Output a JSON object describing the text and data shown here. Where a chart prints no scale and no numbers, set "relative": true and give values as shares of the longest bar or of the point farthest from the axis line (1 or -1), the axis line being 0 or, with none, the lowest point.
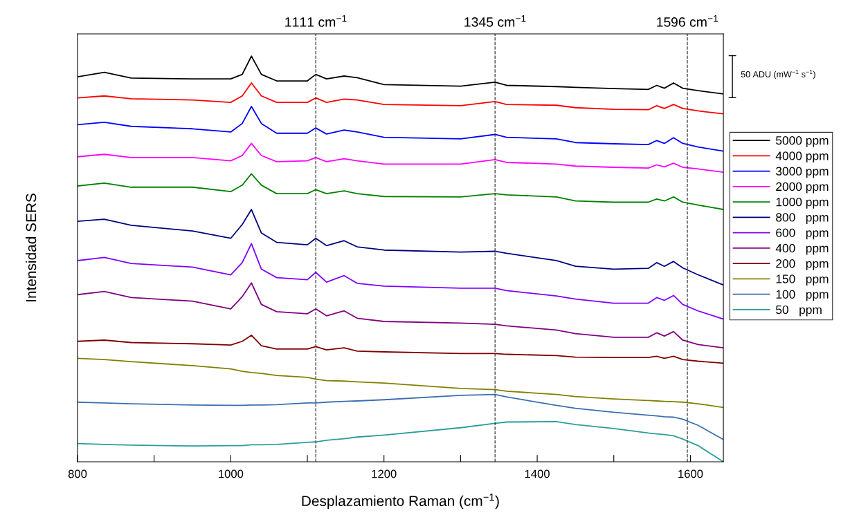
{
  "chart_data": {
    "type": "line",
    "relative": true,
    "xlabel": "Desplazamiento Raman (cm$^{−1}$)",
    "ylabel": "Intensidad SERS",
    "xlim": [
      800,
      1643
    ],
    "xticks": [
      800,
      {
        "value": 900,
        "label": null
      },
      1000,
      {
        "value": 1100,
        "label": null
      },
      1200,
      {
        "value": 1300,
        "label": null
      },
      1400,
      {
        "value": 1500,
        "label": null
      },
      1600
    ],
    "x": [
      800,
      835,
      870,
      950,
      1000,
      1015,
      1027,
      1040,
      1060,
      1100,
      1111,
      1125,
      1148,
      1165,
      1200,
      1300,
      1345,
      1360,
      1425,
      1450,
      1500,
      1545,
      1556,
      1566,
      1578,
      1590,
      1610,
      1643
    ],
    "series": [
      {
        "name": "5000 ppm",
        "color": "#000000",
        "values": [
          0.949,
          0.96,
          0.946,
          0.944,
          0.944,
          0.955,
          1.0,
          0.955,
          0.939,
          0.939,
          0.955,
          0.944,
          0.951,
          0.947,
          0.93,
          0.926,
          0.936,
          0.928,
          0.925,
          0.923,
          0.92,
          0.918,
          0.928,
          0.921,
          0.934,
          0.921,
          0.915,
          0.907
        ]
      },
      {
        "name": "4000 ppm",
        "color": "#ff0000",
        "values": [
          0.897,
          0.902,
          0.895,
          0.892,
          0.886,
          0.902,
          0.934,
          0.902,
          0.886,
          0.886,
          0.897,
          0.886,
          0.894,
          0.892,
          0.881,
          0.878,
          0.888,
          0.881,
          0.879,
          0.873,
          0.869,
          0.868,
          0.878,
          0.871,
          0.881,
          0.871,
          0.865,
          0.858
        ]
      },
      {
        "name": "3000 ppm",
        "color": "#0000ff",
        "values": [
          0.831,
          0.837,
          0.827,
          0.821,
          0.813,
          0.834,
          0.876,
          0.834,
          0.81,
          0.81,
          0.823,
          0.808,
          0.818,
          0.813,
          0.8,
          0.796,
          0.807,
          0.8,
          0.796,
          0.787,
          0.784,
          0.782,
          0.792,
          0.785,
          0.799,
          0.785,
          0.776,
          0.766
        ]
      },
      {
        "name": "2000 ppm",
        "color": "#ff00ff",
        "values": [
          0.752,
          0.758,
          0.75,
          0.75,
          0.742,
          0.755,
          0.785,
          0.755,
          0.74,
          0.742,
          0.75,
          0.74,
          0.747,
          0.742,
          0.734,
          0.734,
          0.745,
          0.738,
          0.734,
          0.729,
          0.726,
          0.724,
          0.732,
          0.727,
          0.736,
          0.726,
          0.722,
          0.714
        ]
      },
      {
        "name": "1000 ppm",
        "color": "#008000",
        "values": [
          0.68,
          0.687,
          0.677,
          0.677,
          0.666,
          0.682,
          0.71,
          0.682,
          0.661,
          0.661,
          0.671,
          0.661,
          0.668,
          0.661,
          0.654,
          0.653,
          0.661,
          0.658,
          0.653,
          0.643,
          0.64,
          0.64,
          0.648,
          0.643,
          0.653,
          0.64,
          0.633,
          0.622
        ]
      },
      {
        "name": "800   ppm",
        "color": "#000080",
        "values": [
          0.593,
          0.598,
          0.583,
          0.569,
          0.551,
          0.585,
          0.622,
          0.564,
          0.541,
          0.535,
          0.551,
          0.533,
          0.545,
          0.53,
          0.522,
          0.517,
          0.519,
          0.514,
          0.496,
          0.482,
          0.475,
          0.477,
          0.491,
          0.482,
          0.494,
          0.478,
          0.461,
          0.436
        ]
      },
      {
        "name": "600   ppm",
        "color": "#8000ff",
        "values": [
          0.496,
          0.504,
          0.489,
          0.48,
          0.461,
          0.491,
          0.538,
          0.475,
          0.454,
          0.449,
          0.467,
          0.443,
          0.459,
          0.44,
          0.433,
          0.428,
          0.428,
          0.422,
          0.409,
          0.401,
          0.391,
          0.391,
          0.405,
          0.398,
          0.41,
          0.388,
          0.372,
          0.352
        ]
      },
      {
        "name": "400   ppm",
        "color": "#800080",
        "values": [
          0.412,
          0.42,
          0.405,
          0.396,
          0.377,
          0.407,
          0.441,
          0.388,
          0.37,
          0.365,
          0.377,
          0.36,
          0.372,
          0.354,
          0.346,
          0.342,
          0.339,
          0.335,
          0.325,
          0.316,
          0.307,
          0.307,
          0.318,
          0.31,
          0.321,
          0.3,
          0.289,
          0.281
        ]
      },
      {
        "name": "200   ppm",
        "color": "#800000",
        "values": [
          0.297,
          0.3,
          0.294,
          0.291,
          0.288,
          0.297,
          0.312,
          0.286,
          0.278,
          0.278,
          0.284,
          0.276,
          0.281,
          0.273,
          0.271,
          0.267,
          0.267,
          0.265,
          0.262,
          0.258,
          0.257,
          0.257,
          0.26,
          0.255,
          0.26,
          0.252,
          0.248,
          0.243
        ]
      },
      {
        "name": "150   ppm",
        "color": "#808000",
        "values": [
          0.255,
          0.252,
          0.247,
          0.237,
          0.229,
          0.223,
          0.22,
          0.218,
          0.213,
          0.208,
          0.204,
          0.2,
          0.199,
          0.197,
          0.194,
          0.181,
          0.178,
          0.174,
          0.166,
          0.161,
          0.155,
          0.151,
          0.15,
          0.149,
          0.148,
          0.147,
          0.143,
          0.134
        ]
      },
      {
        "name": "100   ppm",
        "color": "#3a6fb0",
        "values": [
          0.147,
          0.145,
          0.143,
          0.14,
          0.139,
          0.139,
          0.14,
          0.14,
          0.141,
          0.145,
          0.145,
          0.147,
          0.149,
          0.15,
          0.153,
          0.164,
          0.166,
          0.16,
          0.139,
          0.132,
          0.122,
          0.115,
          0.113,
          0.111,
          0.11,
          0.105,
          0.09,
          0.055
        ]
      },
      {
        "name": "50   ppm",
        "color": "#2a9d9a",
        "values": [
          0.045,
          0.043,
          0.041,
          0.039,
          0.04,
          0.04,
          0.042,
          0.042,
          0.043,
          0.048,
          0.049,
          0.053,
          0.057,
          0.061,
          0.066,
          0.084,
          0.095,
          0.098,
          0.099,
          0.092,
          0.082,
          0.071,
          0.069,
          0.067,
          0.064,
          0.056,
          0.04,
          0.0
        ]
      }
    ],
    "ref_lines": [
      {
        "axis": "x",
        "value": 1111,
        "label": "1111 cm$^{−1}$",
        "color": "#333333",
        "line_style": "dashed"
      },
      {
        "axis": "x",
        "value": 1345,
        "label": "1345 cm$^{−1}$",
        "color": "#333333",
        "line_style": "dashed"
      },
      {
        "axis": "x",
        "value": 1596,
        "label": "1596 cm$^{−1}$",
        "color": "#333333",
        "line_style": "dashed"
      }
    ],
    "annotations": [
      "50 ADU (mW$^{−1}$ s$^{−1}$)"
    ],
    "legend": "right",
    "grid": false,
    "marker": "none",
    "line_style": "solid"
  }
}
